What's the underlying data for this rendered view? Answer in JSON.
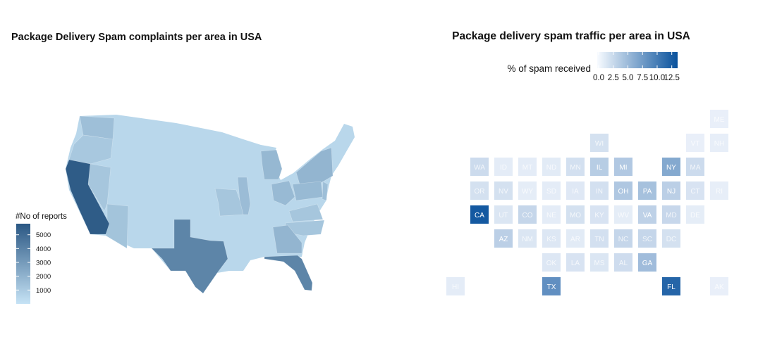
{
  "chart_data": [
    {
      "type": "choropleth",
      "title": "Package Delivery Spam complaints per area in USA",
      "legend": {
        "title": "#No of reports",
        "ticks": [
          1000,
          2000,
          3000,
          4000,
          5000
        ],
        "range": [
          0,
          5800
        ],
        "placement": "left",
        "colors": {
          "low": "#c6e3f5",
          "high": "#2a5783"
        }
      },
      "values": {
        "CA": 5600,
        "TX": 3900,
        "FL": 3900,
        "NY": 1900,
        "GA": 1900,
        "MI": 1800,
        "OH": 1700,
        "IL": 1600,
        "WA": 1500,
        "AZ": 1300,
        "NV": 1200,
        "OR": 1100,
        "MO": 1200,
        "NC": 1200,
        "VA": 1200,
        "PA": 1700,
        "NJ": 1500,
        "OTHER": 500
      }
    },
    {
      "type": "tilemap",
      "title": "Package delivery spam traffic per area in USA",
      "legend": {
        "title": "% of spam received",
        "ticks": [
          "0.0",
          "2.5",
          "5.0",
          "7.5",
          "10.0",
          "12.5"
        ],
        "range": [
          0,
          13.5
        ],
        "placement": "top",
        "colors": {
          "low": "#f7fbff",
          "high": "#08519c"
        }
      },
      "tiles": [
        {
          "state": "ME",
          "row": 0,
          "col": 11,
          "value": 0.3
        },
        {
          "state": "WI",
          "row": 1,
          "col": 6,
          "value": 1.5
        },
        {
          "state": "VT",
          "row": 1,
          "col": 10,
          "value": 0.3
        },
        {
          "state": "NH",
          "row": 1,
          "col": 11,
          "value": 0.4
        },
        {
          "state": "WA",
          "row": 2,
          "col": 1,
          "value": 2.0
        },
        {
          "state": "ID",
          "row": 2,
          "col": 2,
          "value": 0.6
        },
        {
          "state": "MT",
          "row": 2,
          "col": 3,
          "value": 0.6
        },
        {
          "state": "ND",
          "row": 2,
          "col": 4,
          "value": 0.7
        },
        {
          "state": "MN",
          "row": 2,
          "col": 5,
          "value": 1.6
        },
        {
          "state": "IL",
          "row": 2,
          "col": 6,
          "value": 3.2
        },
        {
          "state": "MI",
          "row": 2,
          "col": 7,
          "value": 3.6
        },
        {
          "state": "NY",
          "row": 2,
          "col": 9,
          "value": 6.2
        },
        {
          "state": "MA",
          "row": 2,
          "col": 10,
          "value": 2.0
        },
        {
          "state": "OR",
          "row": 3,
          "col": 1,
          "value": 1.5
        },
        {
          "state": "NV",
          "row": 3,
          "col": 2,
          "value": 1.5
        },
        {
          "state": "WY",
          "row": 3,
          "col": 3,
          "value": 0.5
        },
        {
          "state": "SD",
          "row": 3,
          "col": 4,
          "value": 0.6
        },
        {
          "state": "IA",
          "row": 3,
          "col": 5,
          "value": 0.9
        },
        {
          "state": "IN",
          "row": 3,
          "col": 6,
          "value": 1.6
        },
        {
          "state": "OH",
          "row": 3,
          "col": 7,
          "value": 3.7
        },
        {
          "state": "PA",
          "row": 3,
          "col": 8,
          "value": 4.2
        },
        {
          "state": "NJ",
          "row": 3,
          "col": 9,
          "value": 3.0
        },
        {
          "state": "CT",
          "row": 3,
          "col": 10,
          "value": 1.3
        },
        {
          "state": "RI",
          "row": 3,
          "col": 11,
          "value": 0.4
        },
        {
          "state": "CA",
          "row": 4,
          "col": 1,
          "value": 12.8
        },
        {
          "state": "UT",
          "row": 4,
          "col": 2,
          "value": 1.1
        },
        {
          "state": "CO",
          "row": 4,
          "col": 3,
          "value": 2.4
        },
        {
          "state": "NE",
          "row": 4,
          "col": 4,
          "value": 0.6
        },
        {
          "state": "MO",
          "row": 4,
          "col": 5,
          "value": 1.5
        },
        {
          "state": "KY",
          "row": 4,
          "col": 6,
          "value": 1.3
        },
        {
          "state": "WV",
          "row": 4,
          "col": 7,
          "value": 0.5
        },
        {
          "state": "VA",
          "row": 4,
          "col": 8,
          "value": 2.8
        },
        {
          "state": "MD",
          "row": 4,
          "col": 9,
          "value": 2.3
        },
        {
          "state": "DE",
          "row": 4,
          "col": 10,
          "value": 0.5
        },
        {
          "state": "AZ",
          "row": 5,
          "col": 2,
          "value": 3.0
        },
        {
          "state": "NM",
          "row": 5,
          "col": 3,
          "value": 1.1
        },
        {
          "state": "KS",
          "row": 5,
          "col": 4,
          "value": 1.0
        },
        {
          "state": "AR",
          "row": 5,
          "col": 5,
          "value": 0.7
        },
        {
          "state": "TN",
          "row": 5,
          "col": 6,
          "value": 1.6
        },
        {
          "state": "NC",
          "row": 5,
          "col": 7,
          "value": 2.4
        },
        {
          "state": "SC",
          "row": 5,
          "col": 8,
          "value": 2.4
        },
        {
          "state": "DC",
          "row": 5,
          "col": 9,
          "value": 1.5
        },
        {
          "state": "OK",
          "row": 6,
          "col": 4,
          "value": 1.0
        },
        {
          "state": "LA",
          "row": 6,
          "col": 5,
          "value": 1.3
        },
        {
          "state": "MS",
          "row": 6,
          "col": 6,
          "value": 1.1
        },
        {
          "state": "AL",
          "row": 6,
          "col": 7,
          "value": 1.9
        },
        {
          "state": "GA",
          "row": 6,
          "col": 8,
          "value": 4.6
        },
        {
          "state": "HI",
          "row": 7,
          "col": 0,
          "value": 0.6
        },
        {
          "state": "TX",
          "row": 7,
          "col": 4,
          "value": 8.3
        },
        {
          "state": "FL",
          "row": 7,
          "col": 9,
          "value": 11.8
        },
        {
          "state": "AK",
          "row": 7,
          "col": 11,
          "value": 0.3
        }
      ]
    }
  ]
}
